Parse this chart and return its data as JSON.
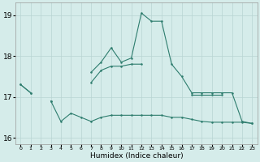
{
  "xlabel": "Humidex (Indice chaleur)",
  "x": [
    0,
    1,
    2,
    3,
    4,
    5,
    6,
    7,
    8,
    9,
    10,
    11,
    12,
    13,
    14,
    15,
    16,
    17,
    18,
    19,
    20,
    21,
    22,
    23
  ],
  "line_peak": [
    17.3,
    17.1,
    null,
    null,
    null,
    null,
    null,
    17.6,
    17.85,
    18.2,
    17.85,
    17.95,
    19.05,
    18.85,
    18.85,
    17.8,
    17.5,
    17.1,
    17.1,
    17.1,
    17.1,
    17.1,
    16.4,
    16.35
  ],
  "line_flat": [
    17.3,
    17.1,
    null,
    16.9,
    null,
    null,
    null,
    17.35,
    17.65,
    17.75,
    17.75,
    17.8,
    17.8,
    null,
    null,
    null,
    null,
    17.05,
    17.05,
    17.05,
    17.05,
    null,
    null,
    null
  ],
  "line_low": [
    null,
    null,
    null,
    16.9,
    16.4,
    16.6,
    16.5,
    16.4,
    16.5,
    16.55,
    16.55,
    16.55,
    16.55,
    16.55,
    16.55,
    16.5,
    16.5,
    16.45,
    16.4,
    16.38,
    16.38,
    16.38,
    16.38,
    16.35
  ],
  "bg_color": "#d5ecea",
  "line_color": "#2e7d6e",
  "grid_color": "#b8d5d2",
  "ylim": [
    15.85,
    19.3
  ],
  "yticks": [
    16,
    17,
    18,
    19
  ],
  "xlim": [
    -0.5,
    23.5
  ]
}
